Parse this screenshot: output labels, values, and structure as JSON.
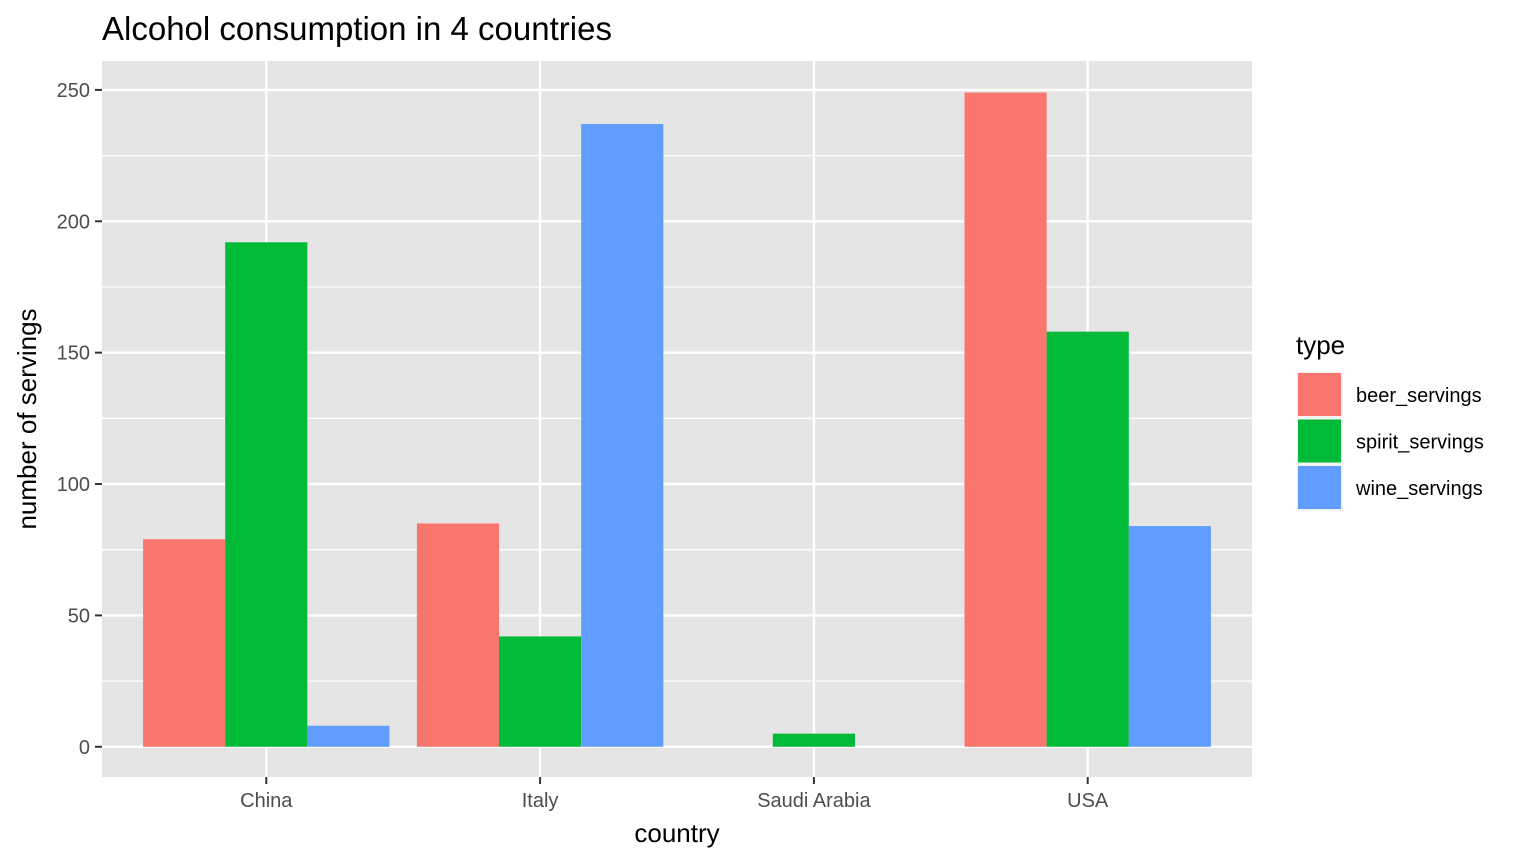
{
  "chart_data": {
    "type": "bar",
    "title": "Alcohol consumption in 4 countries",
    "xlabel": "country",
    "ylabel": "number of servings",
    "categories": [
      "China",
      "Italy",
      "Saudi Arabia",
      "USA"
    ],
    "series": [
      {
        "name": "beer_servings",
        "values": [
          79,
          85,
          0,
          249
        ],
        "color": "#F8766D"
      },
      {
        "name": "spirit_servings",
        "values": [
          192,
          42,
          5,
          158
        ],
        "color": "#00BA38"
      },
      {
        "name": "wine_servings",
        "values": [
          8,
          237,
          0,
          84
        ],
        "color": "#619CFF"
      }
    ],
    "ylim": [
      -11.5,
      261
    ],
    "yticks": [
      0,
      50,
      100,
      150,
      200,
      250
    ],
    "ytick_labels": [
      "0",
      "50",
      "100",
      "150",
      "200",
      "250"
    ],
    "legend_title": "type",
    "legend_position": "right",
    "grid": true,
    "panel_background": "#E5E5E5",
    "grid_color": "#FFFFFF"
  }
}
